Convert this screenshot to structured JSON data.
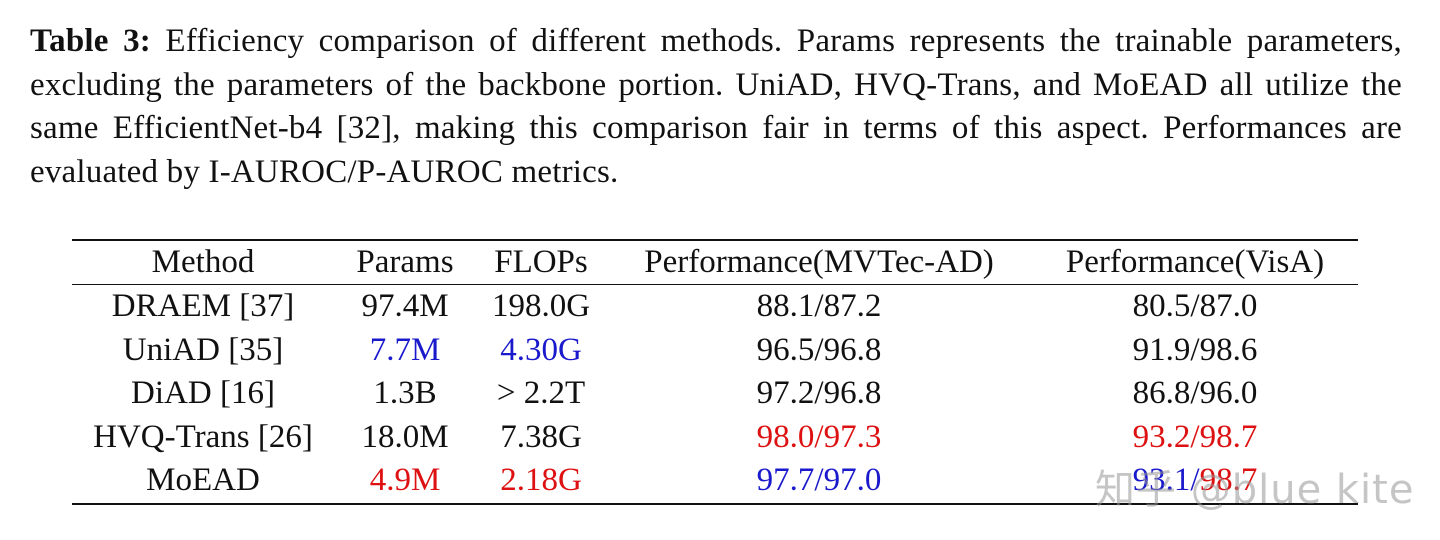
{
  "caption": {
    "label": "Table 3:",
    "text": " Efficiency comparison of different methods. Params represents the trainable parameters, excluding the parameters of the backbone portion. UniAD, HVQ-Trans, and MoEAD all utilize the same EfficientNet-b4 [32], making this comparison fair in terms of this aspect. Performances are evaluated by I-AUROC/P-AUROC metrics."
  },
  "colors": {
    "best": "#dd1111",
    "second_best": "#1a1acc",
    "default": "#111111"
  },
  "table": {
    "headers": {
      "method": "Method",
      "params": "Params",
      "flops": "FLOPs",
      "mvtec": "Performance(MVTec-AD)",
      "visa": "Performance(VisA)"
    },
    "rows": [
      {
        "method": "DRAEM [37]",
        "params": "97.4M",
        "params_color": "black",
        "flops": "198.0G",
        "flops_color": "black",
        "mvtec": "88.1/87.2",
        "mvtec_color": "black",
        "visa": "80.5/87.0",
        "visa_color": "black"
      },
      {
        "method": "UniAD [35]",
        "params": "7.7M",
        "params_color": "blue",
        "flops": "4.30G",
        "flops_color": "blue",
        "mvtec": "96.5/96.8",
        "mvtec_color": "black",
        "visa": "91.9/98.6",
        "visa_color": "black"
      },
      {
        "method": "DiAD [16]",
        "params": "1.3B",
        "params_color": "black",
        "flops": "> 2.2T",
        "flops_color": "black",
        "mvtec": "97.2/96.8",
        "mvtec_color": "black",
        "visa": "86.8/96.0",
        "visa_color": "black"
      },
      {
        "method": "HVQ-Trans [26]",
        "params": "18.0M",
        "params_color": "black",
        "flops": "7.38G",
        "flops_color": "black",
        "mvtec": "98.0/97.3",
        "mvtec_color": "red",
        "visa": "93.2/98.7",
        "visa_color": "red"
      },
      {
        "method": "MoEAD",
        "params": "4.9M",
        "params_color": "red",
        "flops": "2.18G",
        "flops_color": "red",
        "mvtec": "97.7/97.0",
        "mvtec_color": "blue",
        "visa_first": "93.1",
        "visa_first_color": "blue",
        "visa_sep": "/",
        "visa_second": "98.7",
        "visa_second_color": "red"
      }
    ]
  },
  "watermark": "知乎 @blue kite"
}
